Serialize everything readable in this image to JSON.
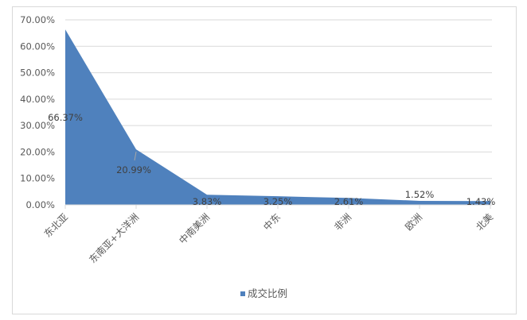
{
  "chart_data": {
    "type": "area",
    "title": "",
    "xlabel": "",
    "ylabel": "",
    "categories": [
      "东北亚",
      "东南亚+大洋洲",
      "中南美洲",
      "中东",
      "非洲",
      "欧洲",
      "北美"
    ],
    "series": [
      {
        "name": "成交比例",
        "values": [
          66.37,
          20.99,
          3.83,
          3.25,
          2.61,
          1.52,
          1.43
        ],
        "labels": [
          "66.37%",
          "20.99%",
          "3.83%",
          "3.25%",
          "2.61%",
          "1.52%",
          "1.43%"
        ],
        "color": "#4f81bd"
      }
    ],
    "yticks": [
      "0.00%",
      "10.00%",
      "20.00%",
      "30.00%",
      "40.00%",
      "50.00%",
      "60.00%",
      "70.00%"
    ],
    "ylim": [
      0,
      70
    ],
    "grid": true,
    "legend": "bottom"
  }
}
